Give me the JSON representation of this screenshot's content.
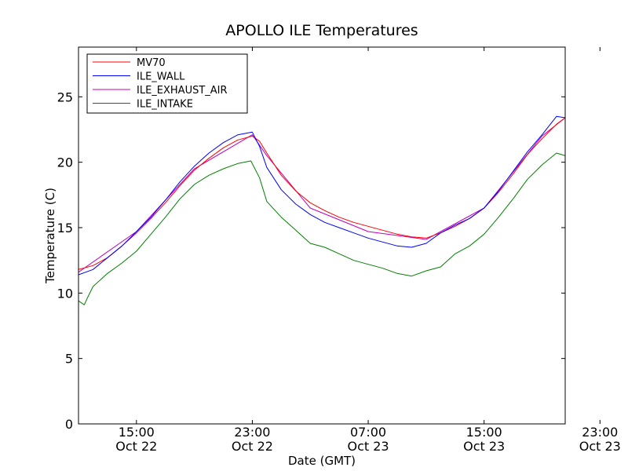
{
  "chart_data": {
    "type": "line",
    "title": "APOLLO ILE Temperatures",
    "xlabel": "Date (GMT)",
    "ylabel": "Temperature (C)",
    "x_unit": "hours since Oct 22 11:00 GMT",
    "xlim": [
      0,
      33.6
    ],
    "ylim": [
      0,
      28.8
    ],
    "yticks": [
      0,
      5,
      10,
      15,
      20,
      25
    ],
    "xticks": [
      {
        "x": 4,
        "time": "15:00",
        "date": "Oct 22"
      },
      {
        "x": 12,
        "time": "23:00",
        "date": "Oct 22"
      },
      {
        "x": 20,
        "time": "07:00",
        "date": "Oct 23"
      },
      {
        "x": 28,
        "time": "15:00",
        "date": "Oct 23"
      },
      {
        "x": 36,
        "time": "23:00",
        "date": "Oct 23"
      }
    ],
    "legend_position": "top-left",
    "series": [
      {
        "name": "MV70",
        "color": "#ff0000",
        "x": [
          0,
          1,
          2,
          3,
          4,
          5,
          6,
          7,
          8,
          9,
          10,
          11,
          12,
          12.5,
          13,
          14,
          15,
          16,
          17,
          18,
          19,
          20,
          21,
          22,
          23,
          24,
          25,
          26,
          27,
          28,
          29,
          30,
          31,
          32,
          33,
          33.6
        ],
        "values": [
          11.8,
          12.1,
          12.7,
          13.6,
          14.6,
          15.7,
          16.9,
          18.2,
          19.4,
          20.3,
          21.1,
          21.7,
          22.0,
          21.6,
          20.7,
          19.0,
          17.8,
          16.9,
          16.3,
          15.8,
          15.4,
          15.1,
          14.8,
          14.5,
          14.3,
          14.2,
          14.6,
          15.1,
          15.7,
          16.5,
          17.7,
          19.1,
          20.6,
          21.8,
          22.9,
          23.4
        ]
      },
      {
        "name": "ILE_WALL",
        "color": "#0000ff",
        "x": [
          0,
          1,
          2,
          3,
          4,
          5,
          6,
          7,
          8,
          9,
          10,
          11,
          12,
          12.5,
          13,
          14,
          15,
          16,
          17,
          18,
          19,
          20,
          21,
          22,
          23,
          24,
          25,
          26,
          27,
          28,
          29,
          30,
          31,
          32,
          33,
          33.6
        ],
        "values": [
          11.4,
          11.8,
          12.7,
          13.6,
          14.7,
          15.8,
          17.1,
          18.5,
          19.7,
          20.7,
          21.5,
          22.1,
          22.3,
          21.2,
          19.6,
          17.9,
          16.8,
          16.0,
          15.4,
          15.0,
          14.6,
          14.2,
          13.9,
          13.6,
          13.5,
          13.8,
          14.6,
          15.2,
          15.7,
          16.5,
          17.8,
          19.3,
          20.8,
          22.1,
          23.5,
          23.4
        ]
      },
      {
        "name": "ILE_EXHAUST_AIR",
        "color": "#bf00bf",
        "x": [
          0,
          4,
          8,
          12,
          13,
          16,
          20,
          24,
          28,
          32,
          33.6
        ],
        "values": [
          11.6,
          14.7,
          19.5,
          22.1,
          20.5,
          16.5,
          14.7,
          14.1,
          16.5,
          22.0,
          23.4
        ]
      },
      {
        "name": "ILE_INTAKE",
        "color": "#008000",
        "x": [
          0,
          0.4,
          0.6,
          1,
          2,
          3,
          4,
          5,
          6,
          7,
          8,
          9,
          10,
          11,
          11.9,
          12.5,
          13,
          14,
          15,
          16,
          17,
          18,
          19,
          20,
          21,
          22,
          23,
          24,
          25,
          26,
          27,
          28,
          29,
          30,
          31,
          32,
          33,
          33.6
        ],
        "values": [
          9.4,
          9.1,
          9.6,
          10.5,
          11.5,
          12.3,
          13.2,
          14.5,
          15.8,
          17.2,
          18.3,
          19.0,
          19.5,
          19.9,
          20.1,
          18.8,
          17.0,
          15.8,
          14.8,
          13.8,
          13.5,
          13.0,
          12.5,
          12.2,
          11.9,
          11.5,
          11.3,
          11.7,
          12.0,
          13.0,
          13.6,
          14.5,
          15.8,
          17.2,
          18.7,
          19.8,
          20.7,
          20.5
        ]
      }
    ]
  }
}
